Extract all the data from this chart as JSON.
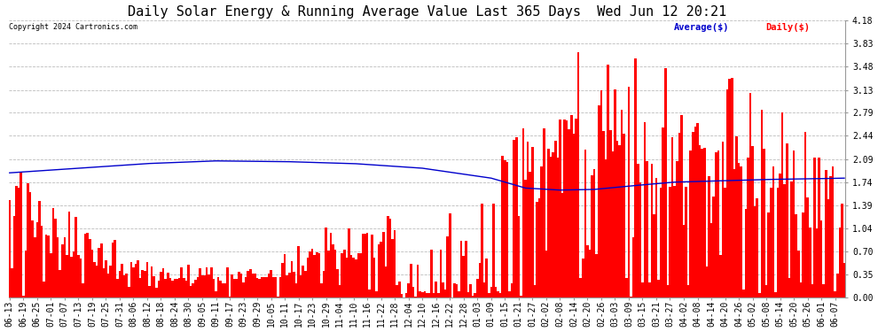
{
  "title": "Daily Solar Energy & Running Average Value Last 365 Days  Wed Jun 12 20:21",
  "copyright": "Copyright 2024 Cartronics.com",
  "legend_avg": "Average($)",
  "legend_daily": "Daily($)",
  "ylabel_ticks": [
    0.0,
    0.35,
    0.7,
    1.04,
    1.39,
    1.74,
    2.09,
    2.44,
    2.79,
    3.13,
    3.48,
    3.83,
    4.18
  ],
  "ylim_max": 4.18,
  "bar_color": "#FF0000",
  "avg_line_color": "#0000CC",
  "background_color": "#FFFFFF",
  "grid_color": "#BBBBBB",
  "title_fontsize": 11,
  "tick_fontsize": 7,
  "n_bars": 365,
  "x_labels": [
    "06-13",
    "06-19",
    "06-25",
    "07-01",
    "07-07",
    "07-13",
    "07-19",
    "07-25",
    "07-31",
    "08-06",
    "08-12",
    "08-18",
    "08-24",
    "08-30",
    "09-05",
    "09-11",
    "09-17",
    "09-23",
    "09-29",
    "10-05",
    "10-11",
    "10-17",
    "10-23",
    "10-29",
    "11-04",
    "11-10",
    "11-16",
    "11-22",
    "11-28",
    "12-04",
    "12-10",
    "12-16",
    "12-22",
    "12-28",
    "01-03",
    "01-09",
    "01-15",
    "01-21",
    "01-27",
    "02-02",
    "02-08",
    "02-14",
    "02-20",
    "02-26",
    "03-03",
    "03-09",
    "03-15",
    "03-21",
    "03-27",
    "04-02",
    "04-08",
    "04-14",
    "04-20",
    "04-26",
    "05-02",
    "05-08",
    "05-14",
    "05-20",
    "05-26",
    "06-01",
    "06-07"
  ],
  "avg_control_points": [
    [
      0,
      1.88
    ],
    [
      30,
      1.95
    ],
    [
      60,
      2.02
    ],
    [
      90,
      2.06
    ],
    [
      120,
      2.05
    ],
    [
      150,
      2.02
    ],
    [
      180,
      1.95
    ],
    [
      210,
      1.8
    ],
    [
      225,
      1.65
    ],
    [
      240,
      1.62
    ],
    [
      255,
      1.63
    ],
    [
      270,
      1.68
    ],
    [
      290,
      1.74
    ],
    [
      310,
      1.76
    ],
    [
      330,
      1.78
    ],
    [
      350,
      1.79
    ],
    [
      364,
      1.8
    ]
  ]
}
